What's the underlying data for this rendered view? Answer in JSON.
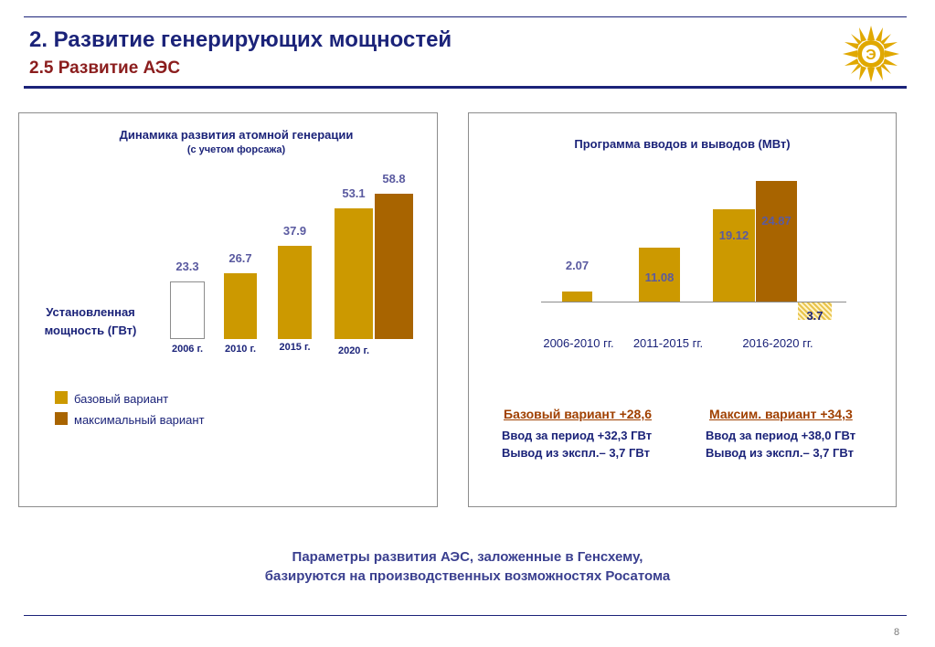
{
  "header": {
    "title": "2. Развитие генерирующих мощностей",
    "subtitle": "2.5 Развитие АЭС"
  },
  "colors": {
    "accent_navy": "#1b2379",
    "base_gold": "#cc9900",
    "max_brown": "#a86400",
    "header_red": "#8b1d1d"
  },
  "logo": {
    "icon": "sun-logo-icon"
  },
  "left_panel": {
    "title": "Динамика развития атомной генерации",
    "subtitle": "(с учетом форсажа)",
    "y_label_line1": "Установленная",
    "y_label_line2": "мощность (ГВт)",
    "legend": [
      {
        "label": "базовый вариант",
        "color": "#cc9900"
      },
      {
        "label": "максимальный вариант",
        "color": "#a86400"
      }
    ]
  },
  "right_panel": {
    "title": "Программа вводов и выводов (МВт)",
    "base_summary": {
      "heading": "Базовый вариант +28,6",
      "line1": "Ввод за период +32,3 ГВт",
      "line2": "Вывод из экспл.– 3,7 ГВт"
    },
    "max_summary": {
      "heading": "Максим. вариант +34,3",
      "line1": "Ввод за период +38,0 ГВт",
      "line2": "Вывод из экспл.– 3,7 ГВт"
    }
  },
  "chart_data": [
    {
      "type": "bar",
      "title": "Динамика развития атомной генерации",
      "subtitle": "(с учетом форсажа)",
      "ylabel": "Установленная мощность (ГВт)",
      "categories": [
        "2006 г.",
        "2010 г.",
        "2015 г.",
        "2020 г."
      ],
      "series": [
        {
          "name": "базовый вариант",
          "values": [
            23.3,
            26.7,
            37.9,
            53.1
          ]
        },
        {
          "name": "максимальный вариант",
          "values": [
            null,
            null,
            null,
            58.8
          ]
        }
      ],
      "value_labels": [
        "23.3",
        "26.7",
        "37.9",
        "53.1",
        "58.8"
      ],
      "first_bar_style": "outline",
      "ylim": [
        0,
        60
      ],
      "grid": false,
      "legend": "bottom-left"
    },
    {
      "type": "bar",
      "title": "Программа вводов и выводов (МВт)",
      "categories": [
        "2006-2010 гг.",
        "2011-2015 гг.",
        "2016-2020 гг."
      ],
      "series": [
        {
          "name": "базовый вариант",
          "values": [
            2.07,
            11.08,
            19.12
          ]
        },
        {
          "name": "максимальный вариант",
          "values": [
            null,
            null,
            24.87
          ]
        },
        {
          "name": "вывод",
          "values": [
            null,
            null,
            -3.7
          ]
        }
      ],
      "value_labels": [
        "2.07",
        "11.08",
        "19.12",
        "24.87",
        "3.7"
      ],
      "ylim": [
        -4,
        26
      ],
      "grid": false
    }
  ],
  "footer": {
    "line1": "Параметры развития АЭС, заложенные в Генсхему,",
    "line2": "базируются на производственных возможностях Росатома"
  },
  "page_number": "8"
}
